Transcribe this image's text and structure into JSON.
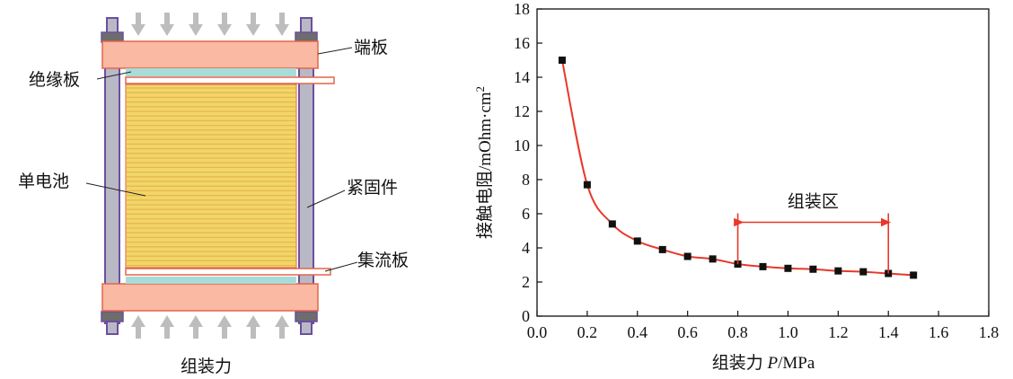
{
  "diagram": {
    "labels": {
      "end_plate": "端板",
      "insulation_plate": "绝缘板",
      "single_cell": "单电池",
      "fastener": "紧固件",
      "current_collector": "集流板",
      "assembly_force": "组装力"
    },
    "colors": {
      "end_plate": "#f9b9a3",
      "insulation": "#a8dcd8",
      "cells": "#f1d66a",
      "cell_lines": "#e8b84a",
      "rod": "#b9b9c6",
      "rod_border": "#6b4fa0",
      "nut": "#6d6d6d",
      "arrow": "#bdbdbd",
      "outline": "#e3654a"
    }
  },
  "chart_data": {
    "type": "scatter",
    "x": [
      0.1,
      0.2,
      0.3,
      0.4,
      0.5,
      0.6,
      0.7,
      0.8,
      0.9,
      1.0,
      1.1,
      1.2,
      1.3,
      1.4,
      1.5
    ],
    "y": [
      15.0,
      7.7,
      5.4,
      4.4,
      3.9,
      3.5,
      3.35,
      3.05,
      2.9,
      2.8,
      2.75,
      2.65,
      2.6,
      2.5,
      2.4
    ],
    "xlabel_prefix": "组装力 ",
    "xlabel_var": "P",
    "xlabel_unit": "/MPa",
    "ylabel_main": "接触电阻/mOhm·cm",
    "ylabel_sup": "2",
    "xlim": [
      0.0,
      1.8
    ],
    "ylim": [
      0,
      18
    ],
    "xticks": [
      "0.0",
      "0.2",
      "0.4",
      "0.6",
      "0.8",
      "1.0",
      "1.2",
      "1.4",
      "1.6",
      "1.8"
    ],
    "yticks": [
      "0",
      "2",
      "4",
      "6",
      "8",
      "10",
      "12",
      "14",
      "16",
      "18"
    ],
    "annotation": {
      "text": "组装区",
      "x_start": 0.8,
      "x_end": 1.4,
      "y": 5.5
    },
    "grid": false,
    "curve": "fitted",
    "colors": {
      "curve": "#e8382b",
      "marker": "#111111"
    }
  }
}
